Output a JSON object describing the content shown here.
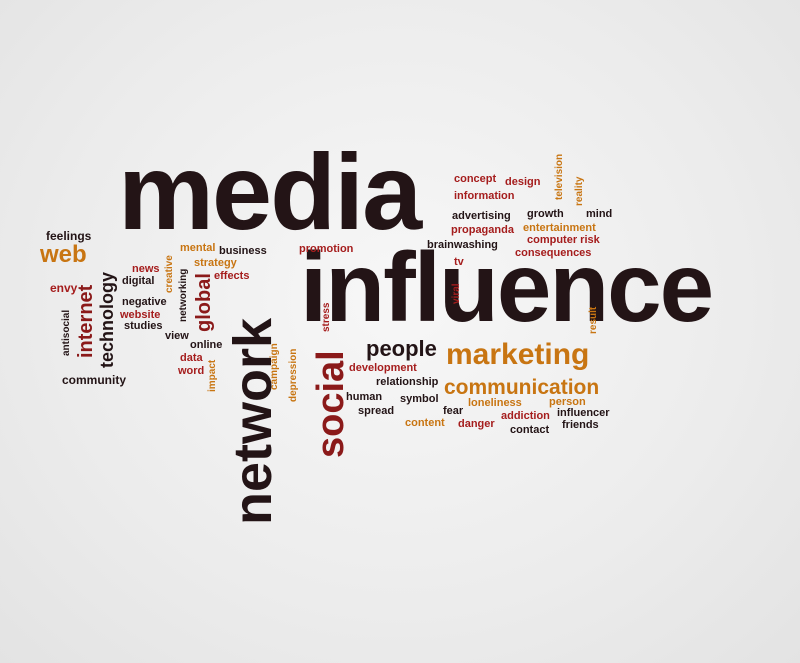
{
  "palette": {
    "background": "#ececec",
    "dark": "#231416",
    "crimson": "#8b1a1a",
    "red": "#a51d1d",
    "orange": "#c87512",
    "gold": "#b78a12",
    "brown": "#5a2a1a"
  },
  "words": {
    "media": "media",
    "influence": "influence",
    "network": "network",
    "social": "social",
    "marketing": "marketing",
    "communication": "communication",
    "people": "people",
    "web": "web",
    "internet": "internet",
    "technology": "technology",
    "global": "global",
    "feelings": "feelings",
    "envy": "envy",
    "antisocial": "antisocial",
    "community": "community",
    "news": "news",
    "digital": "digital",
    "negative": "negative",
    "website": "website",
    "studies": "studies",
    "view": "view",
    "creative": "creative",
    "networking": "networking",
    "mental": "mental",
    "business": "business",
    "strategy": "strategy",
    "effects": "effects",
    "online": "online",
    "data": "data",
    "word": "word",
    "impact": "impact",
    "campaign": "campaign",
    "depression": "depression",
    "stress": "stress",
    "promotion": "promotion",
    "brainwashing": "brainwashing",
    "tv": "tv",
    "viral": "viral",
    "concept": "concept",
    "design": "design",
    "information": "information",
    "television": "television",
    "reality": "reality",
    "advertising": "advertising",
    "growth": "growth",
    "mind": "mind",
    "propaganda": "propaganda",
    "entertainment": "entertainment",
    "computer_risk": "computer risk",
    "consequences": "consequences",
    "result": "result",
    "development": "development",
    "relationship": "relationship",
    "human": "human",
    "symbol": "symbol",
    "spread": "spread",
    "loneliness": "loneliness",
    "fear": "fear",
    "person": "person",
    "content": "content",
    "danger": "danger",
    "addiction": "addiction",
    "influencer": "influencer",
    "contact": "contact",
    "friends": "friends"
  }
}
